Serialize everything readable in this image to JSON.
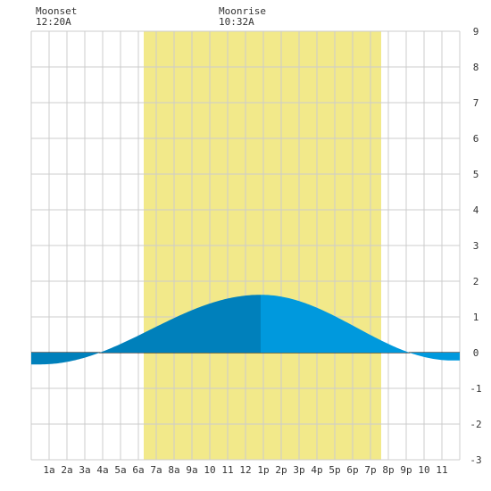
{
  "moon": {
    "set_title": "Moonset",
    "set_time": "12:20A",
    "rise_title": "Moonrise",
    "rise_time": "10:32A"
  },
  "chart_data": {
    "type": "area",
    "title": "",
    "xlabel": "",
    "ylabel": "",
    "x_tick_labels": [
      "1a",
      "2a",
      "3a",
      "4a",
      "5a",
      "6a",
      "7a",
      "8a",
      "9a",
      "10",
      "11",
      "12",
      "1p",
      "2p",
      "3p",
      "4p",
      "5p",
      "6p",
      "7p",
      "8p",
      "9p",
      "10",
      "11"
    ],
    "x_tick_hours": [
      1,
      2,
      3,
      4,
      5,
      6,
      7,
      8,
      9,
      10,
      11,
      12,
      13,
      14,
      15,
      16,
      17,
      18,
      19,
      20,
      21,
      22,
      23
    ],
    "xlim_hours": [
      0,
      24
    ],
    "y_ticks": [
      -3,
      -2,
      -1,
      0,
      1,
      2,
      3,
      4,
      5,
      6,
      7,
      8,
      9
    ],
    "ylim": [
      -3,
      9
    ],
    "y_axis_side": "right",
    "grid": true,
    "daylight_hours": [
      6.3,
      19.6
    ],
    "tide_events": [
      {
        "type": "low",
        "hour": 0.5,
        "height": -0.33
      },
      {
        "type": "high",
        "hour": 12.85,
        "height": 1.62
      },
      {
        "type": "low",
        "hour": 23.6,
        "height": -0.22
      }
    ],
    "series": [
      {
        "values_hour": [
          0,
          1,
          2,
          3,
          4,
          5,
          6,
          7,
          8,
          9,
          10,
          11,
          12,
          13,
          14,
          15,
          16,
          17,
          18,
          19,
          20,
          21,
          22,
          23,
          24
        ],
        "values_height": [
          -0.32,
          -0.32,
          -0.23,
          -0.08,
          0.1,
          0.31,
          0.53,
          0.76,
          0.98,
          1.18,
          1.36,
          1.5,
          1.59,
          1.62,
          1.58,
          1.47,
          1.3,
          1.07,
          0.82,
          0.57,
          0.33,
          0.12,
          -0.05,
          -0.18,
          -0.2
        ]
      }
    ],
    "colors": {
      "daylight": "#f2e98a",
      "before_peak_fill": "#0080bb",
      "after_peak_fill": "#0099dd",
      "grid": "#cccccc",
      "zero_line": "#000000"
    }
  }
}
